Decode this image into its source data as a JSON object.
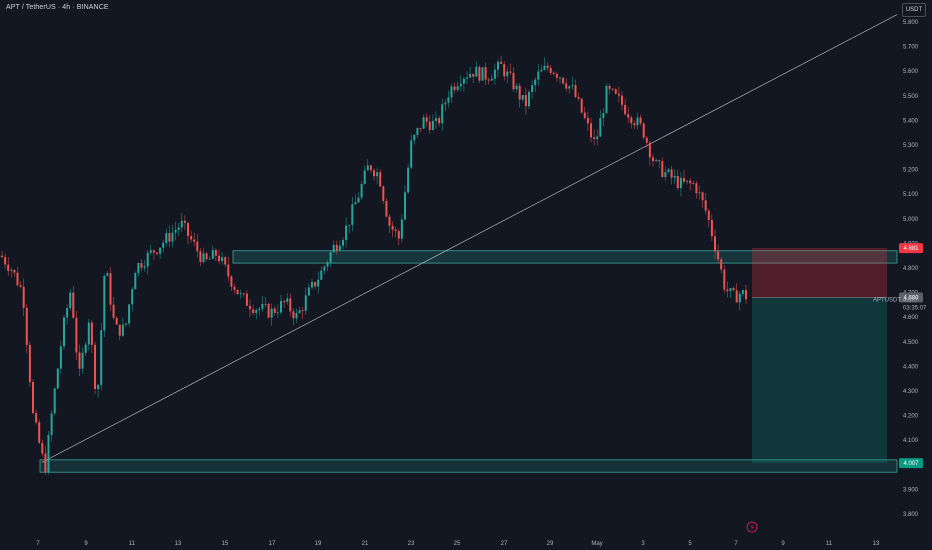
{
  "header": {
    "title": "APT / TetherUS · 4h · BINANCE",
    "currency": "USDT"
  },
  "chart_data": {
    "type": "candlestick",
    "symbol": "APTUSDT",
    "interval": "4h",
    "exchange": "BINANCE",
    "ylim": [
      3.75,
      5.9
    ],
    "y_ticks": [
      3.8,
      3.9,
      4.0,
      4.1,
      4.2,
      4.3,
      4.4,
      4.5,
      4.6,
      4.7,
      4.8,
      4.9,
      5.0,
      5.1,
      5.2,
      5.3,
      5.4,
      5.5,
      5.6,
      5.7,
      5.8
    ],
    "x_ticks": [
      "7",
      "9",
      "11",
      "13",
      "15",
      "17",
      "19",
      "21",
      "23",
      "25",
      "27",
      "29",
      "May",
      "3",
      "5",
      "7",
      "9",
      "11",
      "13"
    ],
    "approx_series": {
      "description_points": [
        {
          "d": "Apr 6",
          "price": 4.85
        },
        {
          "d": "Apr 7",
          "price": 4.0
        },
        {
          "d": "Apr 9",
          "price": 4.45
        },
        {
          "d": "Apr 12",
          "price": 4.95
        },
        {
          "d": "Apr 16",
          "price": 4.65
        },
        {
          "d": "Apr 19",
          "price": 4.8
        },
        {
          "d": "Apr 22",
          "price": 5.25
        },
        {
          "d": "Apr 26",
          "price": 5.6
        },
        {
          "d": "Apr 29",
          "price": 5.55
        },
        {
          "d": "May 1",
          "price": 5.5
        },
        {
          "d": "May 3",
          "price": 5.35
        },
        {
          "d": "May 5",
          "price": 5.1
        },
        {
          "d": "May 6",
          "price": 4.68
        },
        {
          "d": "May 7",
          "price": 4.677
        }
      ]
    },
    "zones": [
      {
        "name": "resistance-support-zone",
        "low": 4.82,
        "high": 4.87
      },
      {
        "name": "bottom-support-zone",
        "low": 3.97,
        "high": 4.02
      }
    ],
    "trendline": {
      "from": {
        "d": "Apr 7",
        "price": 4.01
      },
      "to": {
        "d": "May 13",
        "price": 5.83
      }
    },
    "position": {
      "type": "short",
      "entry": 4.68,
      "stop": 4.881,
      "target": 4.007
    },
    "price_labels": {
      "stop": "4.881",
      "entry": "4.680",
      "last_symbol": "APTUSDT",
      "last_price": "4.677",
      "countdown": "03:35:07",
      "target": "4.007"
    },
    "colors": {
      "up": "#26a69a",
      "down": "#ef5350",
      "stop_zone": "#f23645",
      "target_zone": "#089981",
      "background": "#131722"
    }
  }
}
